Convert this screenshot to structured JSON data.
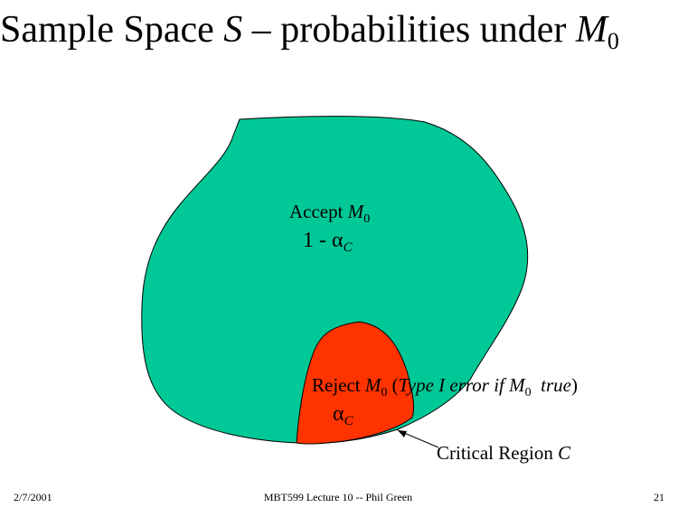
{
  "slide": {
    "title": [
      "Sample Space ",
      "S",
      " – probabilities under ",
      "M",
      "0"
    ],
    "accept_label": [
      "Accept ",
      "M",
      "0"
    ],
    "accept_prob": [
      "1 - ",
      "α",
      "C"
    ],
    "reject_label": [
      "Reject ",
      "M",
      "0",
      " (",
      "Type I error if ",
      "M",
      "0",
      "  true",
      ")"
    ],
    "reject_prob": [
      "α",
      "C"
    ],
    "critical_label": [
      "Critical Region ",
      "C"
    ],
    "footer": {
      "date": "2/7/2001",
      "center": "MBT599 Lecture 10 -- Phil Green",
      "page": "21"
    }
  }
}
